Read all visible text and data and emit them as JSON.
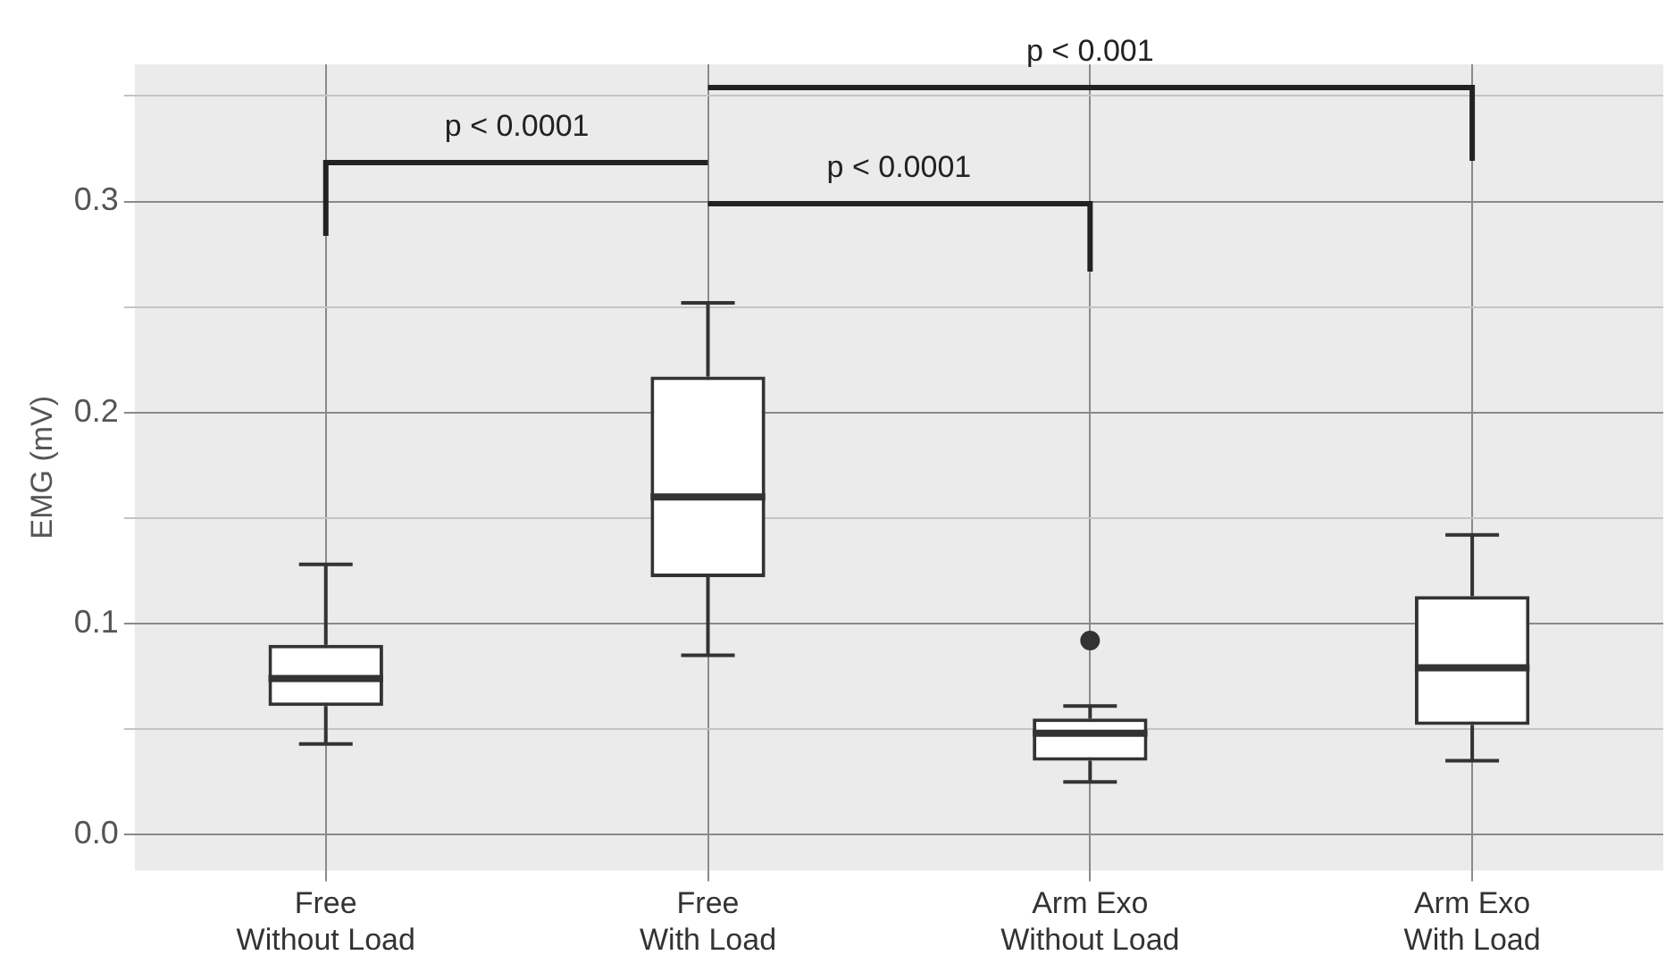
{
  "chart_data": {
    "type": "box",
    "ylabel": "EMG (mV)",
    "categories": [
      "Free\nWithout Load",
      "Free\nWith Load",
      "Arm Exo\nWithout Load",
      "Arm Exo\nWith Load"
    ],
    "boxes": [
      {
        "low": 0.043,
        "q1": 0.061,
        "median": 0.074,
        "q3": 0.09,
        "high": 0.128
      },
      {
        "low": 0.085,
        "q1": 0.122,
        "median": 0.16,
        "q3": 0.217,
        "high": 0.252
      },
      {
        "low": 0.025,
        "q1": 0.035,
        "median": 0.048,
        "q3": 0.055,
        "high": 0.061,
        "outliers": [
          0.092
        ]
      },
      {
        "low": 0.035,
        "q1": 0.052,
        "median": 0.079,
        "q3": 0.113,
        "high": 0.142
      }
    ],
    "ylim": [
      -0.017,
      0.365
    ],
    "yticks": [
      {
        "value": 0,
        "label": "0.0"
      },
      {
        "value": 0.05,
        "label": null
      },
      0.1,
      {
        "value": 0.15,
        "label": null
      },
      0.2,
      {
        "value": 0.25,
        "label": null
      },
      0.3,
      {
        "value": 0.35,
        "label": null
      }
    ],
    "grid": true,
    "legend": false,
    "annotations": [
      "p < 0.0001",
      "p < 0.0001",
      "p < 0.001"
    ]
  }
}
